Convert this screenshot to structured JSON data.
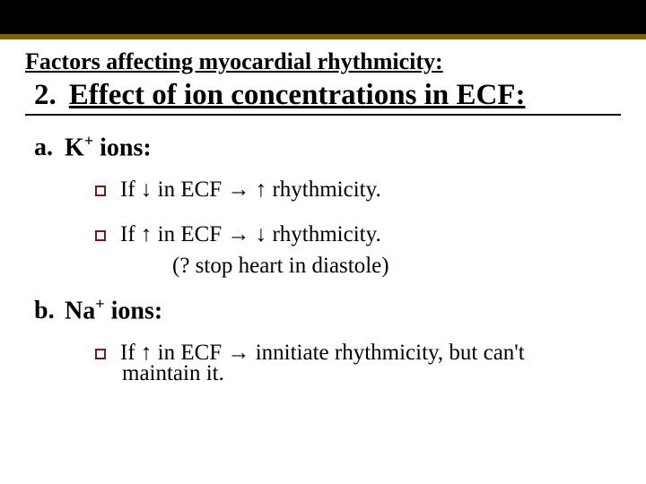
{
  "colors": {
    "top_bar": "#000000",
    "accent_border": "#7f6000",
    "bullet_border": "#6b1e1e",
    "text": "#000000",
    "background": "#ffffff"
  },
  "subtitle": "Factors affecting myocardial rhythmicity:",
  "heading": {
    "number": "2.",
    "text": "Effect of ion concentrations in ECF:"
  },
  "sections": [
    {
      "letter": "a.",
      "title_html": "K<sup>+</sup> ions:",
      "bullets": [
        {
          "html": "If <span class='arrow'>↓</span> in ECF <span class='arrow'>→</span> <span class='arrow'>↑</span> rhythmicity."
        },
        {
          "html": "If <span class='arrow'>↑</span> in ECF <span class='arrow'>→</span> <span class='arrow'>↓</span> rhythmicity.",
          "extra": "(? stop heart in diastole)"
        }
      ]
    },
    {
      "letter": "b.",
      "title_html": "Na<sup>+</sup> ions:",
      "bullets": [
        {
          "html": "If <span class='arrow'>↑</span> in ECF <span class='arrow'>→</span> innitiate rhythmicity, but can't",
          "extra2": "maintain it."
        }
      ]
    }
  ]
}
